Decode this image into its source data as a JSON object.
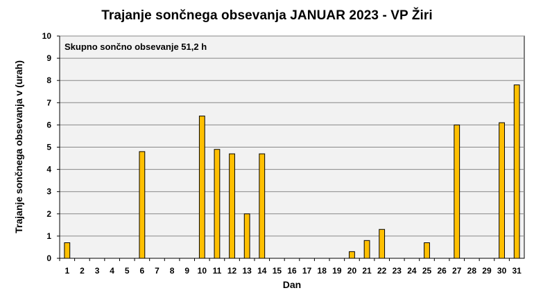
{
  "chart_data": {
    "type": "bar",
    "title": "Trajanje  sončnega obsevanja  JANUAR 2023 - VP Žiri",
    "xlabel": "Dan",
    "ylabel": "Trajanje  sončnega obsevanja  v (urah)",
    "annotation": "Skupno sončno obsevanje 51,2 h",
    "ylim": [
      0,
      10
    ],
    "yticks": [
      "0",
      "1",
      "2",
      "3",
      "4",
      "5",
      "6",
      "7",
      "8",
      "9",
      "10"
    ],
    "categories": [
      "1",
      "2",
      "3",
      "4",
      "5",
      "6",
      "7",
      "8",
      "9",
      "10",
      "11",
      "12",
      "13",
      "14",
      "15",
      "16",
      "17",
      "18",
      "19",
      "20",
      "21",
      "22",
      "23",
      "24",
      "25",
      "26",
      "27",
      "28",
      "29",
      "30",
      "31"
    ],
    "values": [
      0.7,
      0,
      0,
      0,
      0,
      4.8,
      0,
      0,
      0,
      6.4,
      4.9,
      4.7,
      2.0,
      4.7,
      0,
      0,
      0,
      0,
      0,
      0.3,
      0.8,
      1.3,
      0,
      0,
      0.7,
      0,
      6.0,
      0,
      0,
      6.1,
      7.8
    ],
    "grid": true,
    "colors": {
      "bar": "#FFC000",
      "bar_edge": "#000000",
      "plot_bg": "#F2F2F2",
      "grid": "#868686"
    }
  }
}
